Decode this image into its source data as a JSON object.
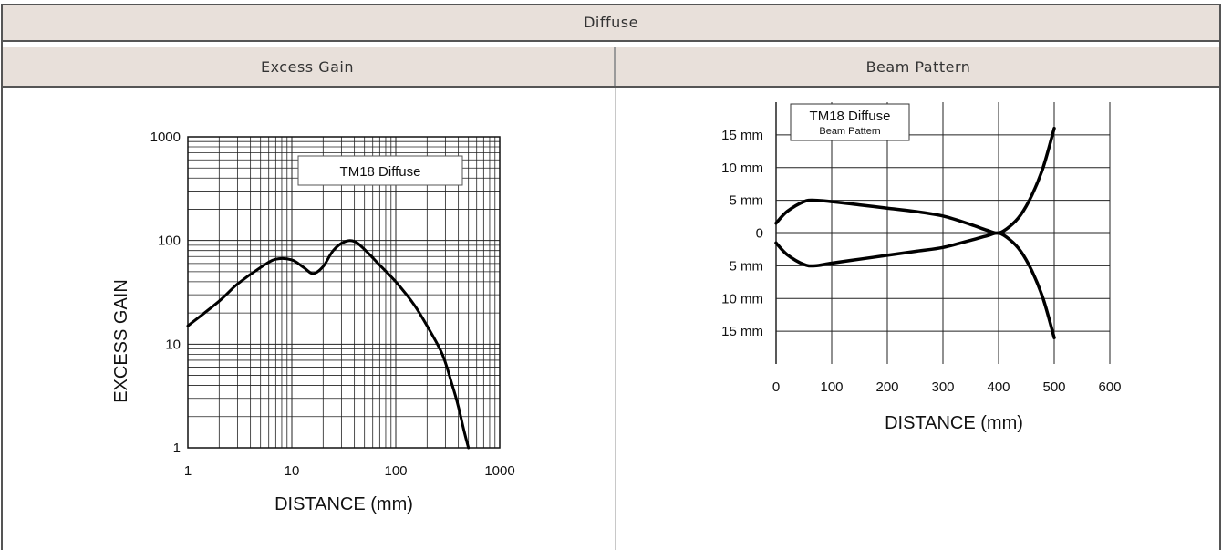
{
  "table": {
    "title": "Diffuse",
    "col_left": "Excess Gain",
    "col_right": "Beam Pattern"
  },
  "chart_data": [
    {
      "type": "line",
      "chart_id": "excess-gain",
      "legend": "TM18 Diffuse",
      "xlabel": "DISTANCE (mm)",
      "ylabel": "EXCESS GAIN",
      "xscale": "log",
      "yscale": "log",
      "xlim": [
        1,
        1000
      ],
      "ylim": [
        1,
        1000
      ],
      "xticks": [
        "1",
        "10",
        "100",
        "1000"
      ],
      "yticks": [
        "1",
        "10",
        "100",
        "1000"
      ],
      "grid": true,
      "legend_position": "top-right",
      "series": [
        {
          "x": [
            1,
            2,
            3,
            5,
            7,
            10,
            13,
            16,
            20,
            25,
            32,
            40,
            50,
            70,
            100,
            150,
            200,
            280,
            350,
            400,
            450,
            500
          ],
          "y": [
            15,
            26,
            38,
            55,
            66,
            65,
            55,
            48,
            56,
            80,
            97,
            98,
            82,
            58,
            40,
            24,
            15,
            8,
            4,
            2.5,
            1.5,
            1
          ]
        }
      ]
    },
    {
      "type": "line",
      "chart_id": "beam-pattern",
      "legend": "TM18 Diffuse",
      "legend_sub": "Beam Pattern",
      "xlabel": "DISTANCE (mm)",
      "xlim": [
        0,
        600
      ],
      "ylim": [
        -20,
        20
      ],
      "xticks": [
        "0",
        "100",
        "200",
        "300",
        "400",
        "500",
        "600"
      ],
      "yticks": [
        "15 mm",
        "10 mm",
        "5 mm",
        "0",
        "5 mm",
        "10 mm",
        "15 mm"
      ],
      "grid": true,
      "legend_position": "top-left",
      "series": [
        {
          "x": [
            0,
            20,
            50,
            70,
            100,
            150,
            200,
            250,
            300,
            350,
            380,
            400,
            420,
            440,
            460,
            480,
            500
          ],
          "y": [
            1.5,
            3.3,
            4.8,
            5,
            4.8,
            4.3,
            3.8,
            3.3,
            2.6,
            1.3,
            0.4,
            0,
            1,
            2.8,
            5.8,
            10,
            16
          ]
        },
        {
          "x": [
            0,
            20,
            50,
            70,
            100,
            150,
            200,
            250,
            300,
            350,
            380,
            400,
            420,
            440,
            460,
            480,
            500
          ],
          "y": [
            -1.5,
            -3.3,
            -4.8,
            -5,
            -4.6,
            -4,
            -3.4,
            -2.8,
            -2.2,
            -1.1,
            -0.4,
            0,
            -1,
            -2.8,
            -5.8,
            -10,
            -16
          ]
        }
      ]
    }
  ]
}
